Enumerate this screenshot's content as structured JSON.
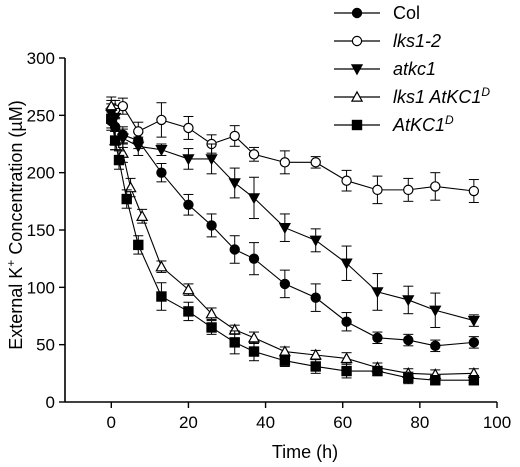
{
  "chart_data": {
    "type": "line",
    "xlabel": "Time (h)",
    "ylabel_main": "External K",
    "ylabel_sup": "+",
    "ylabel_rest": " Concentration (µM)",
    "xlim": [
      -12,
      100
    ],
    "ylim": [
      0,
      300
    ],
    "xticks": [
      0,
      20,
      40,
      60,
      80,
      100
    ],
    "yticks": [
      0,
      50,
      100,
      150,
      200,
      250,
      300
    ],
    "error_bars": true,
    "grid": false,
    "legend_position": "top-right",
    "series": [
      {
        "name": "Col",
        "name_italic": false,
        "marker": "filled-circle",
        "x": [
          0,
          1,
          3,
          7,
          13,
          20,
          26,
          32,
          37,
          45,
          53,
          61,
          69,
          77,
          84,
          94
        ],
        "y": [
          245,
          240,
          233,
          228,
          200,
          172,
          154,
          133,
          125,
          103,
          91,
          70,
          56,
          54,
          49,
          52
        ],
        "err": [
          8,
          8,
          7,
          7,
          8,
          9,
          10,
          12,
          14,
          12,
          12,
          8,
          5,
          5,
          5,
          5
        ]
      },
      {
        "name": "lks1-2",
        "name_italic": true,
        "marker": "open-circle",
        "x": [
          0,
          1,
          3,
          7,
          13,
          20,
          26,
          32,
          37,
          45,
          53,
          61,
          69,
          77,
          84,
          94
        ],
        "y": [
          255,
          255,
          258,
          236,
          246,
          239,
          225,
          232,
          216,
          209,
          209,
          193,
          185,
          185,
          188,
          184
        ],
        "err": [
          8,
          8,
          7,
          8,
          15,
          10,
          8,
          9,
          6,
          10,
          5,
          9,
          12,
          10,
          12,
          10
        ]
      },
      {
        "name": "atkc1",
        "name_italic": true,
        "marker": "filled-triangle-down",
        "x": [
          0,
          1,
          3,
          7,
          13,
          20,
          26,
          32,
          37,
          45,
          53,
          61,
          69,
          77,
          84,
          94
        ],
        "y": [
          252,
          248,
          230,
          223,
          220,
          212,
          212,
          191,
          178,
          152,
          141,
          121,
          96,
          89,
          80,
          71
        ],
        "err": [
          8,
          8,
          8,
          8,
          5,
          9,
          13,
          13,
          18,
          12,
          10,
          15,
          16,
          12,
          15,
          5
        ]
      },
      {
        "name": "lks1 AtKC1",
        "name_sup": "D",
        "name_italic": true,
        "marker": "open-triangle-up",
        "x": [
          0,
          1,
          3,
          5,
          8,
          13,
          20,
          26,
          32,
          37,
          45,
          53,
          61,
          69,
          77,
          84,
          94
        ],
        "y": [
          258,
          228,
          217,
          187,
          162,
          118,
          98,
          77,
          63,
          56,
          44,
          41,
          38,
          30,
          25,
          24,
          25
        ],
        "err": [
          8,
          8,
          8,
          8,
          6,
          5,
          5,
          5,
          4,
          5,
          4,
          4,
          5,
          4,
          4,
          4,
          4
        ]
      },
      {
        "name": "AtKC1",
        "name_sup": "D",
        "name_italic": true,
        "marker": "filled-square",
        "x": [
          0,
          1,
          2,
          4,
          7,
          13,
          20,
          26,
          32,
          37,
          45,
          53,
          61,
          69,
          77,
          84,
          94
        ],
        "y": [
          247,
          228,
          211,
          177,
          137,
          92,
          79,
          65,
          52,
          44,
          36,
          31,
          27,
          27,
          21,
          19,
          19
        ],
        "err": [
          8,
          8,
          8,
          8,
          8,
          12,
          8,
          6,
          10,
          8,
          5,
          6,
          6,
          4,
          5,
          4,
          4
        ]
      }
    ]
  }
}
